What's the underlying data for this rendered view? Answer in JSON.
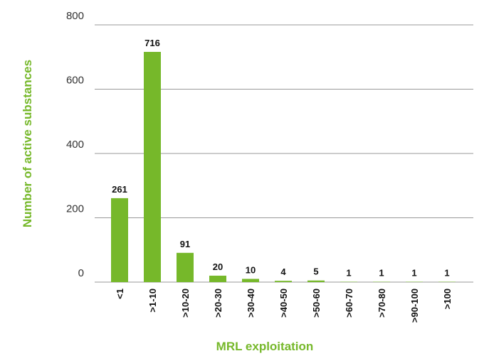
{
  "chart_data": {
    "type": "bar",
    "x_label": "MRL exploitation",
    "y_label": "Number of active substances",
    "categories": [
      "<1",
      ">1-10",
      ">10-20",
      ">20-30",
      ">30-40",
      ">40-50",
      ">50-60",
      ">60-70",
      ">70-80",
      ">90-100",
      ">100"
    ],
    "values": [
      261,
      716,
      91,
      20,
      10,
      4,
      5,
      1,
      1,
      1,
      1
    ],
    "color": "#76b82a",
    "ylim": [
      0,
      800
    ],
    "yticks": [
      0,
      200,
      400,
      600,
      800
    ],
    "grid": true
  }
}
